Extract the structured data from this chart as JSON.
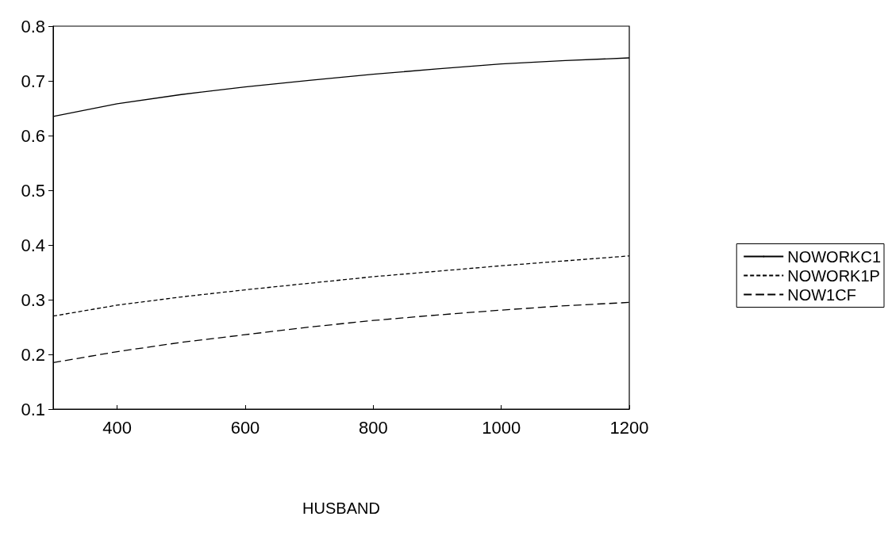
{
  "chart_data": {
    "type": "line",
    "xlabel": "HUSBAND",
    "x": [
      300,
      400,
      500,
      600,
      700,
      800,
      900,
      1000,
      1100,
      1200
    ],
    "series": [
      {
        "name": "NOWORKC1",
        "color": "#000000",
        "line_style": "solid",
        "values": [
          0.635,
          0.658,
          0.675,
          0.689,
          0.701,
          0.712,
          0.722,
          0.731,
          0.737,
          0.742
        ]
      },
      {
        "name": "NOWORK1P",
        "color": "#000000",
        "line_style": "dotted",
        "values": [
          0.27,
          0.29,
          0.305,
          0.318,
          0.33,
          0.342,
          0.352,
          0.362,
          0.371,
          0.38
        ]
      },
      {
        "name": "NOW1CF",
        "color": "#000000",
        "line_style": "dashed",
        "values": [
          0.185,
          0.205,
          0.222,
          0.236,
          0.25,
          0.262,
          0.272,
          0.281,
          0.289,
          0.295
        ]
      }
    ],
    "xlim": [
      300,
      1200
    ],
    "xticks": [
      400,
      600,
      800,
      1000,
      1200
    ],
    "ylim": [
      0.1,
      0.8
    ],
    "yticks": [
      0.1,
      0.2,
      0.3,
      0.4,
      0.5,
      0.6,
      0.7,
      0.8
    ],
    "grid": false,
    "legend": "right",
    "marker": "none"
  }
}
